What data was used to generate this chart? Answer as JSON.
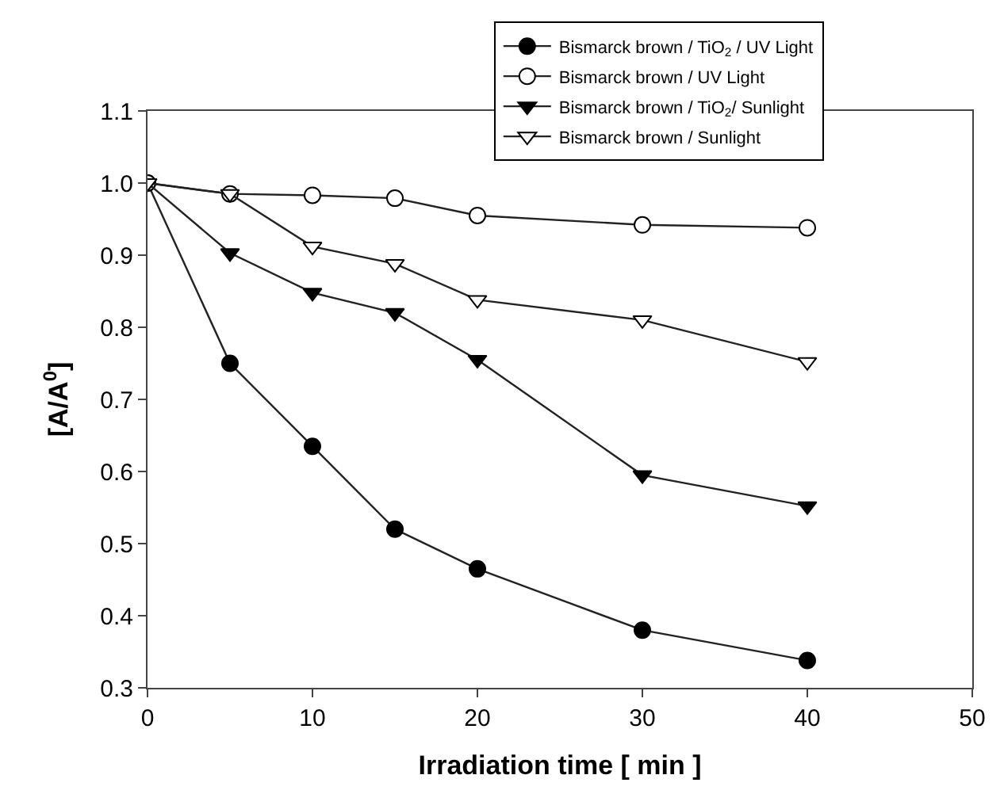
{
  "chart_data": {
    "type": "line",
    "xlabel": "Irradiation time [ min ]",
    "ylabel": "[A/A$^{0}$]",
    "x": [
      0,
      5,
      10,
      15,
      20,
      30,
      40
    ],
    "series": [
      {
        "name": "Bismarck brown / TiO$_{2}$ / UV Light",
        "color": "#000000",
        "marker": "circle",
        "values": [
          1.0,
          0.75,
          0.635,
          0.52,
          0.465,
          0.38,
          0.338
        ]
      },
      {
        "name": "Bismarck brown / UV Light",
        "color": "#ffffff",
        "marker": "circle",
        "values": [
          1.0,
          0.985,
          0.983,
          0.979,
          0.955,
          0.942,
          0.938
        ]
      },
      {
        "name": "Bismarck brown / TiO$_{2}$/ Sunlight",
        "color": "#000000",
        "marker": "triangle",
        "values": [
          1.0,
          0.903,
          0.848,
          0.82,
          0.755,
          0.595,
          0.552
        ]
      },
      {
        "name": "Bismarck brown / Sunlight",
        "color": "#ffffff",
        "marker": "triangle",
        "values": [
          1.0,
          0.985,
          0.912,
          0.888,
          0.838,
          0.81,
          0.752
        ]
      }
    ],
    "xlim": [
      0,
      50
    ],
    "xticks": [
      0,
      10,
      20,
      30,
      40,
      50
    ],
    "ylim": [
      0.3,
      1.1
    ],
    "yticks": [
      0.3,
      0.4,
      0.5,
      0.6,
      0.7,
      0.8,
      0.9,
      {
        "value": 1.0,
        "label": "1.0"
      },
      1.1
    ],
    "legend": "top right",
    "line_style": "solid"
  }
}
